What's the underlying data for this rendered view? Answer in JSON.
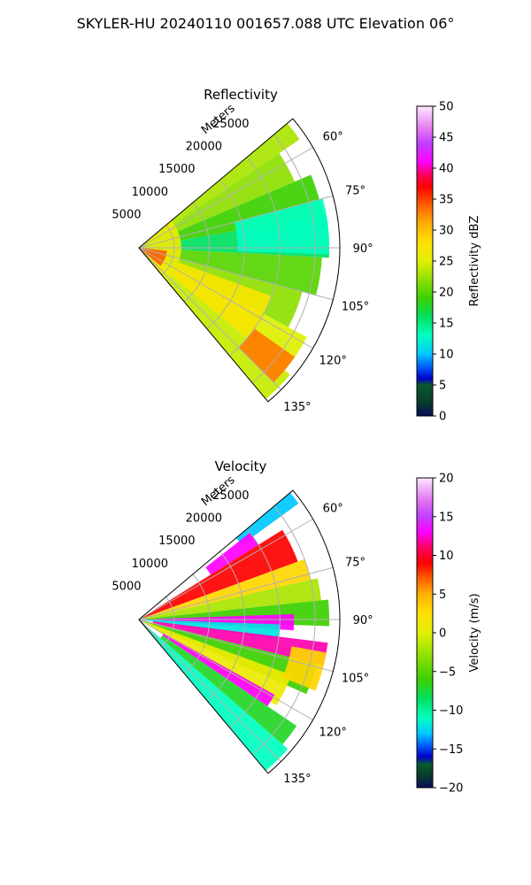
{
  "suptitle": "SKYLER-HU  20240110  001657.088 UTC Elevation 06°",
  "chart_data": [
    {
      "type": "heatmap",
      "projection": "polar-sector",
      "title": "Reflectivity",
      "range_label": "Meters",
      "range_ticks": [
        5000,
        10000,
        15000,
        20000,
        25000
      ],
      "range_tick_labels": [
        "5000",
        "10000",
        "15000",
        "20000",
        "25000"
      ],
      "range_max": 28500,
      "azimuth_range_deg": [
        50,
        140
      ],
      "azimuth_ticks_deg": [
        60,
        75,
        90,
        105,
        120,
        135
      ],
      "azimuth_tick_labels": [
        "60°",
        "75°",
        "90°",
        "105°",
        "120°",
        "135°"
      ],
      "grid": true,
      "colorbar": {
        "label": "Reflectivity dBZ",
        "min": 0,
        "max": 50,
        "ticks": [
          0,
          5,
          10,
          15,
          20,
          25,
          30,
          35,
          40,
          45,
          50
        ],
        "tick_labels": [
          "0",
          "5",
          "10",
          "15",
          "20",
          "25",
          "30",
          "35",
          "40",
          "45",
          "50"
        ],
        "stops": [
          {
            "v": 0,
            "c": "#0a0a5a"
          },
          {
            "v": 2,
            "c": "#073a2c"
          },
          {
            "v": 5,
            "c": "#0a5a30"
          },
          {
            "v": 6,
            "c": "#0000c8"
          },
          {
            "v": 8,
            "c": "#0060ff"
          },
          {
            "v": 10,
            "c": "#00c8ff"
          },
          {
            "v": 13,
            "c": "#00ffc0"
          },
          {
            "v": 16,
            "c": "#00e060"
          },
          {
            "v": 19,
            "c": "#3cd000"
          },
          {
            "v": 22,
            "c": "#8ee000"
          },
          {
            "v": 25,
            "c": "#e0f000"
          },
          {
            "v": 28,
            "c": "#ffe000"
          },
          {
            "v": 31,
            "c": "#ffb000"
          },
          {
            "v": 34,
            "c": "#ff6000"
          },
          {
            "v": 37,
            "c": "#ff0000"
          },
          {
            "v": 39,
            "c": "#ff0060"
          },
          {
            "v": 41,
            "c": "#ff00ff"
          },
          {
            "v": 44,
            "c": "#c040ff"
          },
          {
            "v": 46,
            "c": "#e070f0"
          },
          {
            "v": 50,
            "c": "#ffe8ff"
          }
        ]
      },
      "bands": [
        {
          "az": [
            50,
            56
          ],
          "r": [
            0,
            27500
          ],
          "v": 23
        },
        {
          "az": [
            56,
            67
          ],
          "r": [
            0,
            24000
          ],
          "v": 22
        },
        {
          "az": [
            67,
            80
          ],
          "r": [
            0,
            26500
          ],
          "v": 19
        },
        {
          "az": [
            80,
            93
          ],
          "r": [
            0,
            27000
          ],
          "v": 16
        },
        {
          "az": [
            93,
            105
          ],
          "r": [
            0,
            26000
          ],
          "v": 20
        },
        {
          "az": [
            105,
            118
          ],
          "r": [
            0,
            24000
          ],
          "v": 22
        },
        {
          "az": [
            118,
            130
          ],
          "r": [
            0,
            27000
          ],
          "v": 25
        },
        {
          "az": [
            130,
            140
          ],
          "r": [
            0,
            28000
          ],
          "v": 24
        },
        {
          "az": [
            50,
            140
          ],
          "r": [
            0,
            6000
          ],
          "v": 26
        },
        {
          "az": [
            96,
            130
          ],
          "r": [
            0,
            4000
          ],
          "v": 34
        },
        {
          "az": [
            110,
            130
          ],
          "r": [
            6000,
            20000
          ],
          "v": 27
        },
        {
          "az": [
            125,
            135
          ],
          "r": [
            20000,
            27000
          ],
          "v": 33
        },
        {
          "az": [
            75,
            92
          ],
          "r": [
            14000,
            27000
          ],
          "v": 13
        }
      ]
    },
    {
      "type": "heatmap",
      "projection": "polar-sector",
      "title": "Velocity",
      "range_label": "Meters",
      "range_ticks": [
        5000,
        10000,
        15000,
        20000,
        25000
      ],
      "range_tick_labels": [
        "5000",
        "10000",
        "15000",
        "20000",
        "25000"
      ],
      "range_max": 28500,
      "azimuth_range_deg": [
        50,
        140
      ],
      "azimuth_ticks_deg": [
        60,
        75,
        90,
        105,
        120,
        135
      ],
      "azimuth_tick_labels": [
        "60°",
        "75°",
        "90°",
        "105°",
        "120°",
        "135°"
      ],
      "grid": true,
      "colorbar": {
        "label": "Velocity (m/s)",
        "min": -20,
        "max": 20,
        "ticks": [
          -20,
          -15,
          -10,
          -5,
          0,
          5,
          10,
          15,
          20
        ],
        "tick_labels": [
          "−20",
          "−15",
          "−10",
          "−5",
          "0",
          "5",
          "10",
          "15",
          "20"
        ],
        "stops": [
          {
            "v": -20,
            "c": "#0a0a5a"
          },
          {
            "v": -18.5,
            "c": "#073a2c"
          },
          {
            "v": -17,
            "c": "#0a5a30"
          },
          {
            "v": -16,
            "c": "#0000c8"
          },
          {
            "v": -14.5,
            "c": "#0060ff"
          },
          {
            "v": -13,
            "c": "#00c8ff"
          },
          {
            "v": -11,
            "c": "#00ffc0"
          },
          {
            "v": -8.5,
            "c": "#00e060"
          },
          {
            "v": -6,
            "c": "#3cd000"
          },
          {
            "v": -3,
            "c": "#8ee000"
          },
          {
            "v": 0,
            "c": "#e0f000"
          },
          {
            "v": 2.5,
            "c": "#ffe000"
          },
          {
            "v": 5,
            "c": "#ffb000"
          },
          {
            "v": 7,
            "c": "#ff6000"
          },
          {
            "v": 9,
            "c": "#ff0000"
          },
          {
            "v": 11,
            "c": "#ff0060"
          },
          {
            "v": 13,
            "c": "#ff00ff"
          },
          {
            "v": 15,
            "c": "#c040ff"
          },
          {
            "v": 17,
            "c": "#e070f0"
          },
          {
            "v": 20,
            "c": "#ffe8ff"
          }
        ]
      },
      "bands": [
        {
          "az": [
            50,
            54
          ],
          "r": [
            18000,
            28000
          ],
          "v": -13
        },
        {
          "az": [
            52,
            58
          ],
          "r": [
            12000,
            20000
          ],
          "v": 13
        },
        {
          "az": [
            58,
            70
          ],
          "r": [
            0,
            24000
          ],
          "v": 9
        },
        {
          "az": [
            70,
            77
          ],
          "r": [
            0,
            25000
          ],
          "v": 3
        },
        {
          "az": [
            77,
            84
          ],
          "r": [
            0,
            26000
          ],
          "v": -2
        },
        {
          "az": [
            84,
            92
          ],
          "r": [
            0,
            27000
          ],
          "v": -6
        },
        {
          "az": [
            88,
            94
          ],
          "r": [
            0,
            22000
          ],
          "v": 13
        },
        {
          "az": [
            92,
            98
          ],
          "r": [
            0,
            20000
          ],
          "v": -12
        },
        {
          "az": [
            97,
            104
          ],
          "r": [
            2000,
            27000
          ],
          "v": 12
        },
        {
          "az": [
            104,
            114
          ],
          "r": [
            0,
            26000
          ],
          "v": -6
        },
        {
          "az": [
            110,
            122
          ],
          "r": [
            0,
            23000
          ],
          "v": 1
        },
        {
          "az": [
            119,
            124
          ],
          "r": [
            4000,
            22000
          ],
          "v": 13
        },
        {
          "az": [
            124,
            131
          ],
          "r": [
            4000,
            27000
          ],
          "v": -7
        },
        {
          "az": [
            131,
            140
          ],
          "r": [
            0,
            28000
          ],
          "v": -11
        },
        {
          "az": [
            100,
            112
          ],
          "r": [
            22000,
            27000
          ],
          "v": 3
        }
      ]
    }
  ]
}
